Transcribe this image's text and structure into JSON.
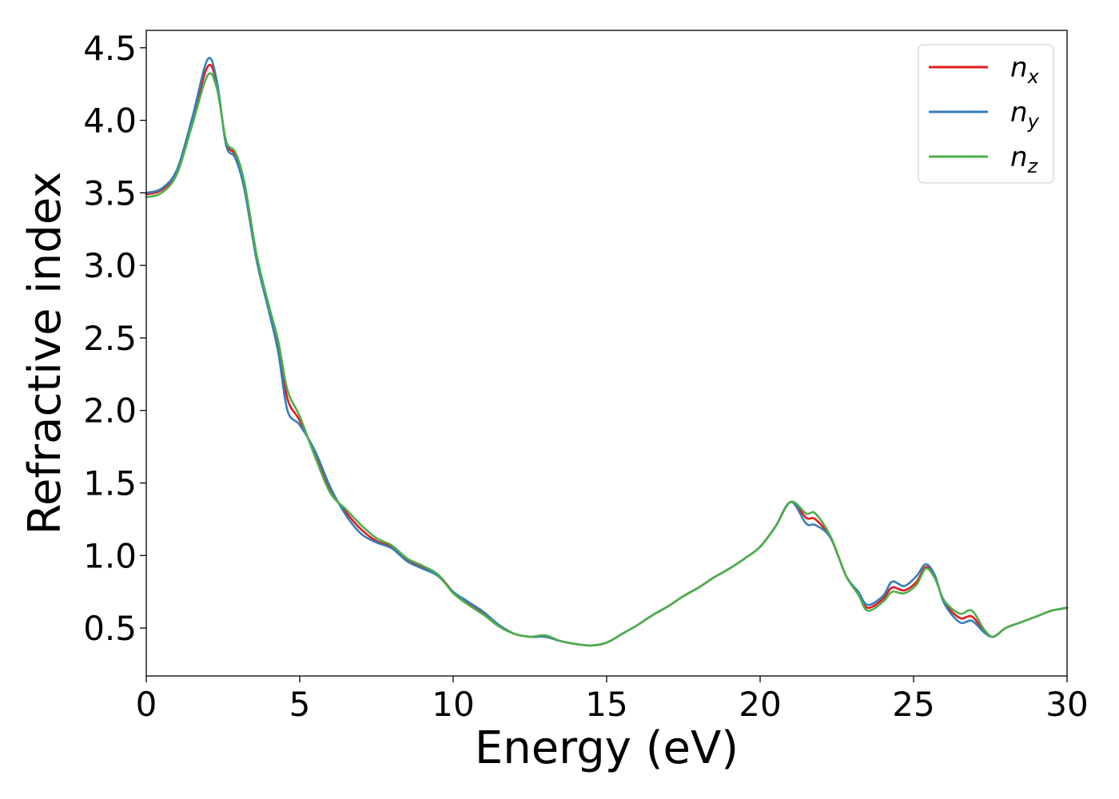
{
  "chart_data": {
    "type": "line",
    "title": "",
    "xlabel": "Energy (eV)",
    "ylabel": "Refractive index",
    "xlim": [
      0,
      30
    ],
    "ylim": [
      0.17,
      4.62
    ],
    "xticks": [
      0,
      5,
      10,
      15,
      20,
      25,
      30
    ],
    "yticks": [
      0.5,
      1.0,
      1.5,
      2.0,
      2.5,
      3.0,
      3.5,
      4.0,
      4.5
    ],
    "xtick_labels": [
      "0",
      "5",
      "10",
      "15",
      "20",
      "25",
      "30"
    ],
    "ytick_labels": [
      "0.5",
      "1.0",
      "1.5",
      "2.0",
      "2.5",
      "3.0",
      "3.5",
      "4.0",
      "4.5"
    ],
    "grid": false,
    "legend_position": "top-right",
    "series": [
      {
        "name": "n",
        "subscript": "x",
        "color": "#e41a1c",
        "points": [
          [
            0,
            3.49
          ],
          [
            0.5,
            3.52
          ],
          [
            1.0,
            3.65
          ],
          [
            1.5,
            4.0
          ],
          [
            2.0,
            4.37
          ],
          [
            2.3,
            4.25
          ],
          [
            2.6,
            3.85
          ],
          [
            2.9,
            3.76
          ],
          [
            3.2,
            3.55
          ],
          [
            3.6,
            3.05
          ],
          [
            4.0,
            2.7
          ],
          [
            4.3,
            2.45
          ],
          [
            4.6,
            2.08
          ],
          [
            5.0,
            1.93
          ],
          [
            5.5,
            1.7
          ],
          [
            6.0,
            1.45
          ],
          [
            6.5,
            1.3
          ],
          [
            7.0,
            1.18
          ],
          [
            7.5,
            1.1
          ],
          [
            8.0,
            1.06
          ],
          [
            8.5,
            0.97
          ],
          [
            9.0,
            0.92
          ],
          [
            9.5,
            0.87
          ],
          [
            10.0,
            0.75
          ],
          [
            10.5,
            0.67
          ],
          [
            11.0,
            0.6
          ],
          [
            11.5,
            0.52
          ],
          [
            12.0,
            0.46
          ],
          [
            12.5,
            0.44
          ],
          [
            13.0,
            0.44
          ],
          [
            13.5,
            0.41
          ],
          [
            14.0,
            0.39
          ],
          [
            14.5,
            0.38
          ],
          [
            15.0,
            0.4
          ],
          [
            15.5,
            0.46
          ],
          [
            16.0,
            0.52
          ],
          [
            16.5,
            0.59
          ],
          [
            17.0,
            0.65
          ],
          [
            17.5,
            0.72
          ],
          [
            18.0,
            0.78
          ],
          [
            18.5,
            0.85
          ],
          [
            19.0,
            0.91
          ],
          [
            19.5,
            0.98
          ],
          [
            20.0,
            1.06
          ],
          [
            20.5,
            1.2
          ],
          [
            21.0,
            1.37
          ],
          [
            21.5,
            1.26
          ],
          [
            21.8,
            1.25
          ],
          [
            22.3,
            1.12
          ],
          [
            22.8,
            0.86
          ],
          [
            23.2,
            0.74
          ],
          [
            23.5,
            0.64
          ],
          [
            24.0,
            0.7
          ],
          [
            24.3,
            0.78
          ],
          [
            24.7,
            0.76
          ],
          [
            25.1,
            0.82
          ],
          [
            25.4,
            0.92
          ],
          [
            25.7,
            0.85
          ],
          [
            26.0,
            0.68
          ],
          [
            26.5,
            0.57
          ],
          [
            26.9,
            0.58
          ],
          [
            27.3,
            0.48
          ],
          [
            27.6,
            0.44
          ],
          [
            28.0,
            0.5
          ],
          [
            28.5,
            0.54
          ],
          [
            29.0,
            0.58
          ],
          [
            29.5,
            0.62
          ],
          [
            30.0,
            0.64
          ]
        ]
      },
      {
        "name": "n",
        "subscript": "y",
        "color": "#377eb8",
        "points": [
          [
            0,
            3.5
          ],
          [
            0.5,
            3.53
          ],
          [
            1.0,
            3.66
          ],
          [
            1.5,
            4.02
          ],
          [
            2.0,
            4.42
          ],
          [
            2.3,
            4.27
          ],
          [
            2.6,
            3.83
          ],
          [
            2.9,
            3.74
          ],
          [
            3.2,
            3.52
          ],
          [
            3.6,
            3.03
          ],
          [
            4.0,
            2.68
          ],
          [
            4.3,
            2.4
          ],
          [
            4.6,
            2.0
          ],
          [
            5.0,
            1.9
          ],
          [
            5.5,
            1.72
          ],
          [
            6.0,
            1.47
          ],
          [
            6.5,
            1.28
          ],
          [
            7.0,
            1.15
          ],
          [
            7.5,
            1.09
          ],
          [
            8.0,
            1.05
          ],
          [
            8.5,
            0.96
          ],
          [
            9.0,
            0.91
          ],
          [
            9.5,
            0.86
          ],
          [
            10.0,
            0.75
          ],
          [
            10.5,
            0.68
          ],
          [
            11.0,
            0.61
          ],
          [
            11.5,
            0.52
          ],
          [
            12.0,
            0.46
          ],
          [
            12.5,
            0.44
          ],
          [
            13.0,
            0.44
          ],
          [
            13.5,
            0.41
          ],
          [
            14.0,
            0.39
          ],
          [
            14.5,
            0.38
          ],
          [
            15.0,
            0.4
          ],
          [
            15.5,
            0.46
          ],
          [
            16.0,
            0.52
          ],
          [
            16.5,
            0.59
          ],
          [
            17.0,
            0.65
          ],
          [
            17.5,
            0.72
          ],
          [
            18.0,
            0.78
          ],
          [
            18.5,
            0.85
          ],
          [
            19.0,
            0.91
          ],
          [
            19.5,
            0.98
          ],
          [
            20.0,
            1.06
          ],
          [
            20.5,
            1.2
          ],
          [
            21.0,
            1.37
          ],
          [
            21.5,
            1.22
          ],
          [
            21.8,
            1.21
          ],
          [
            22.3,
            1.12
          ],
          [
            22.8,
            0.86
          ],
          [
            23.2,
            0.75
          ],
          [
            23.5,
            0.66
          ],
          [
            24.0,
            0.72
          ],
          [
            24.3,
            0.82
          ],
          [
            24.7,
            0.79
          ],
          [
            25.1,
            0.86
          ],
          [
            25.4,
            0.94
          ],
          [
            25.7,
            0.86
          ],
          [
            26.0,
            0.67
          ],
          [
            26.5,
            0.54
          ],
          [
            26.9,
            0.55
          ],
          [
            27.3,
            0.47
          ],
          [
            27.6,
            0.44
          ],
          [
            28.0,
            0.5
          ],
          [
            28.5,
            0.54
          ],
          [
            29.0,
            0.58
          ],
          [
            29.5,
            0.62
          ],
          [
            30.0,
            0.64
          ]
        ]
      },
      {
        "name": "n",
        "subscript": "z",
        "color": "#4daf4a",
        "points": [
          [
            0,
            3.47
          ],
          [
            0.5,
            3.5
          ],
          [
            1.0,
            3.63
          ],
          [
            1.5,
            3.97
          ],
          [
            2.0,
            4.31
          ],
          [
            2.3,
            4.22
          ],
          [
            2.6,
            3.86
          ],
          [
            2.9,
            3.78
          ],
          [
            3.2,
            3.57
          ],
          [
            3.6,
            3.07
          ],
          [
            4.0,
            2.72
          ],
          [
            4.3,
            2.48
          ],
          [
            4.6,
            2.14
          ],
          [
            5.0,
            1.96
          ],
          [
            5.5,
            1.68
          ],
          [
            6.0,
            1.43
          ],
          [
            6.5,
            1.32
          ],
          [
            7.0,
            1.21
          ],
          [
            7.5,
            1.12
          ],
          [
            8.0,
            1.07
          ],
          [
            8.5,
            0.98
          ],
          [
            9.0,
            0.93
          ],
          [
            9.5,
            0.87
          ],
          [
            10.0,
            0.74
          ],
          [
            10.5,
            0.66
          ],
          [
            11.0,
            0.59
          ],
          [
            11.5,
            0.51
          ],
          [
            12.0,
            0.46
          ],
          [
            12.5,
            0.44
          ],
          [
            13.0,
            0.45
          ],
          [
            13.5,
            0.41
          ],
          [
            14.0,
            0.39
          ],
          [
            14.5,
            0.38
          ],
          [
            15.0,
            0.4
          ],
          [
            15.5,
            0.46
          ],
          [
            16.0,
            0.52
          ],
          [
            16.5,
            0.59
          ],
          [
            17.0,
            0.65
          ],
          [
            17.5,
            0.72
          ],
          [
            18.0,
            0.78
          ],
          [
            18.5,
            0.85
          ],
          [
            19.0,
            0.91
          ],
          [
            19.5,
            0.98
          ],
          [
            20.0,
            1.06
          ],
          [
            20.5,
            1.2
          ],
          [
            21.0,
            1.37
          ],
          [
            21.5,
            1.29
          ],
          [
            21.8,
            1.29
          ],
          [
            22.3,
            1.13
          ],
          [
            22.8,
            0.86
          ],
          [
            23.2,
            0.73
          ],
          [
            23.5,
            0.62
          ],
          [
            24.0,
            0.68
          ],
          [
            24.3,
            0.75
          ],
          [
            24.7,
            0.74
          ],
          [
            25.1,
            0.8
          ],
          [
            25.4,
            0.91
          ],
          [
            25.7,
            0.84
          ],
          [
            26.0,
            0.69
          ],
          [
            26.5,
            0.6
          ],
          [
            26.9,
            0.62
          ],
          [
            27.3,
            0.49
          ],
          [
            27.6,
            0.44
          ],
          [
            28.0,
            0.5
          ],
          [
            28.5,
            0.54
          ],
          [
            29.0,
            0.58
          ],
          [
            29.5,
            0.62
          ],
          [
            30.0,
            0.64
          ]
        ]
      }
    ]
  }
}
